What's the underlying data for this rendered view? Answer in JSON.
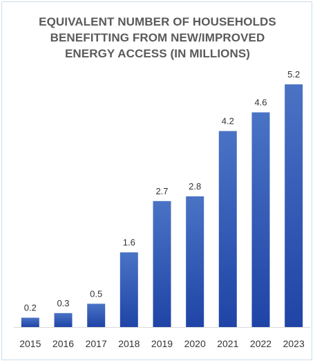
{
  "chart_data": {
    "type": "bar",
    "title_lines": [
      "EQUIVALENT NUMBER OF HOUSEHOLDS",
      "BENEFITTING FROM NEW/IMPROVED",
      "ENERGY ACCESS (IN MILLIONS)"
    ],
    "categories": [
      "2015",
      "2016",
      "2017",
      "2018",
      "2019",
      "2020",
      "2021",
      "2022",
      "2023"
    ],
    "values": [
      0.2,
      0.3,
      0.5,
      1.6,
      2.7,
      2.8,
      4.2,
      4.6,
      5.2
    ],
    "value_labels": [
      "0.2",
      "0.3",
      "0.5",
      "1.6",
      "2.7",
      "2.8",
      "4.2",
      "4.6",
      "5.2"
    ],
    "xlabel": "",
    "ylabel": "",
    "ylim": [
      0,
      5.2
    ],
    "grid": false,
    "legend": "none",
    "colors": {
      "bar_top": "#4a73c5",
      "bar_bottom": "#1f44a6",
      "axis": "#d9d9d9",
      "title": "#5a5a5a",
      "frame": "#c9dcec"
    }
  }
}
